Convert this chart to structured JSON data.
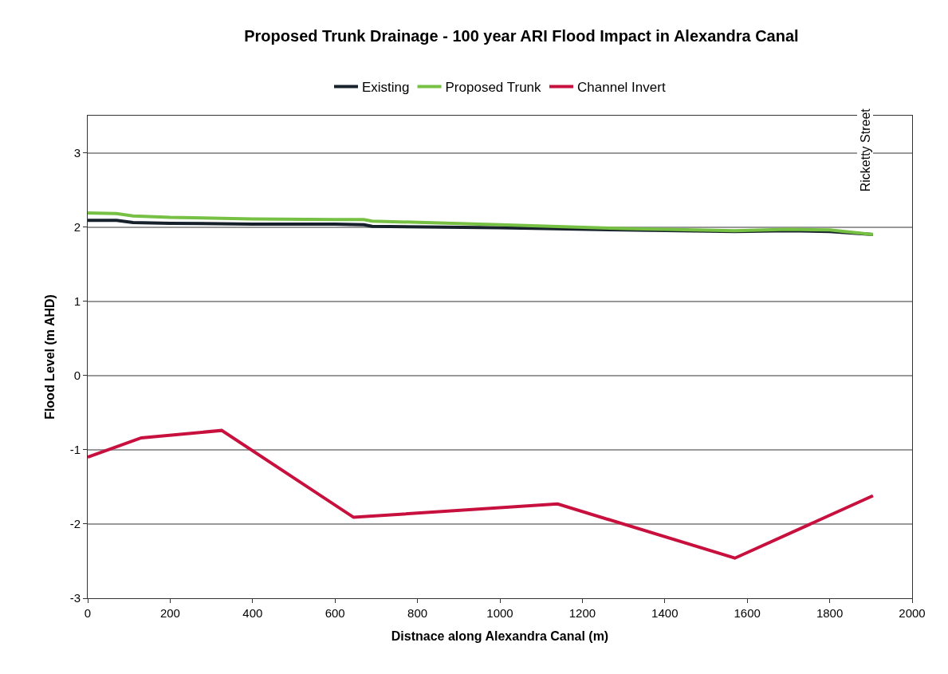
{
  "chart_data": {
    "type": "line",
    "title": "Proposed Trunk Drainage - 100 year ARI Flood Impact in Alexandra Canal",
    "xlabel": "Distnace along Alexandra Canal (m)",
    "ylabel": "Flood Level (m AHD)",
    "series": [
      {
        "name": "Existing",
        "color": "#17212b",
        "x": [
          0,
          70,
          110,
          200,
          400,
          600,
          670,
          690,
          1000,
          1300,
          1570,
          1700,
          1800,
          1905
        ],
        "values": [
          2.09,
          2.09,
          2.06,
          2.05,
          2.04,
          2.04,
          2.03,
          2.01,
          1.99,
          1.96,
          1.94,
          1.95,
          1.94,
          1.9
        ]
      },
      {
        "name": "Proposed Trunk",
        "color": "#76c043",
        "x": [
          0,
          70,
          110,
          200,
          400,
          600,
          670,
          690,
          1000,
          1300,
          1570,
          1700,
          1800,
          1905
        ],
        "values": [
          2.19,
          2.18,
          2.15,
          2.13,
          2.11,
          2.1,
          2.1,
          2.08,
          2.03,
          1.98,
          1.95,
          1.97,
          1.96,
          1.9
        ]
      },
      {
        "name": "Channel Invert",
        "color": "#c8103e",
        "x": [
          0,
          130,
          325,
          645,
          1140,
          1570,
          1905
        ],
        "values": [
          -1.1,
          -0.84,
          -0.74,
          -1.91,
          -1.73,
          -2.46,
          -1.62
        ]
      }
    ],
    "annotations": [
      "Ricketty Street"
    ],
    "xlim": [
      0,
      2000
    ],
    "xticks": [
      0,
      200,
      400,
      600,
      800,
      1000,
      1200,
      1400,
      1600,
      1800,
      2000
    ],
    "ylim": [
      -3,
      3.5
    ],
    "yticks": [
      -3,
      -2,
      -1,
      0,
      1,
      2,
      3
    ],
    "grid": "y",
    "legend": "top",
    "marker": "none",
    "line_style": "solid"
  }
}
